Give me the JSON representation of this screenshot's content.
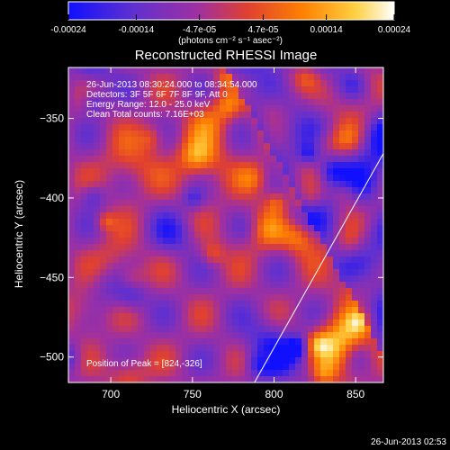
{
  "colorbar": {
    "ticks": [
      "-0.00024",
      "-0.00014",
      "-4.7e-05",
      "4.7e-05",
      "0.00014",
      "0.00024"
    ],
    "tick_values": [
      -0.00024,
      -0.00014,
      -4.7e-05,
      4.7e-05,
      0.00014,
      0.00024
    ],
    "range": [
      -0.00024,
      0.00024
    ],
    "unit_label": "(photons cm⁻² s⁻¹ asec⁻²)",
    "colors": [
      "#1010ff",
      "#6030d0",
      "#a030a0",
      "#e04030",
      "#ff8000",
      "#ffd040",
      "#ffffff"
    ]
  },
  "chart_data": {
    "type": "heatmap",
    "title": "Reconstructed RHESSI Image",
    "xlabel": "Heliocentric X (arcsec)",
    "ylabel": "Heliocentric Y (arcsec)",
    "xlim": [
      674,
      867
    ],
    "ylim": [
      -516,
      -318
    ],
    "xticks": [
      700,
      750,
      800,
      850
    ],
    "yticks": [
      -350,
      -400,
      -450,
      -500
    ],
    "annotations": [
      "26-Jun-2013 08:30:24.000 to 08:34:54.000",
      "Detectors: 3F 5F 6F 7F 8F 9F, Att 0",
      "Energy Range: 12.0 - 25.0 keV",
      "Clean     Total counts: 7.16E+03"
    ],
    "peak_label": "Position of Peak = [824,-326]",
    "peak_position": [
      824,
      -326
    ],
    "limb_line": [
      [
        788,
        -516
      ],
      [
        867,
        -372
      ]
    ]
  },
  "footer": {
    "timestamp": "26-Jun-2013 02:53"
  }
}
